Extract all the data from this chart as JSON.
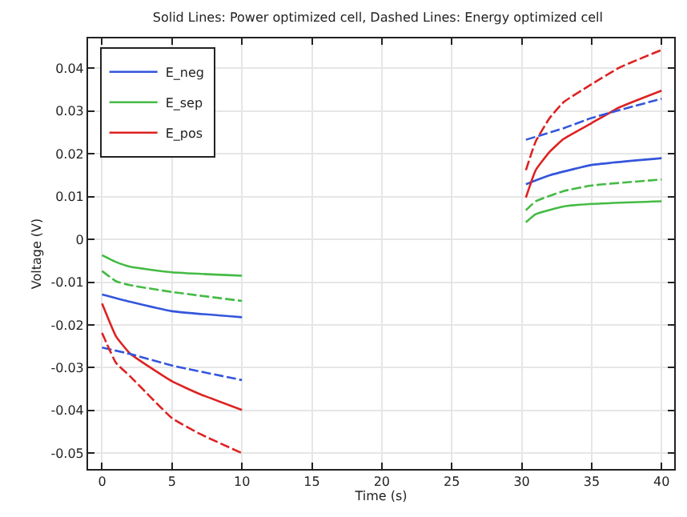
{
  "chart_data": {
    "type": "line",
    "title": "Solid Lines: Power optimized cell, Dashed Lines: Energy optimized cell",
    "xlabel": "Time (s)",
    "ylabel": "Voltage (V)",
    "xlim": [
      -1,
      40.9
    ],
    "xticks": [
      0,
      5,
      10,
      15,
      20,
      25,
      30,
      35,
      40
    ],
    "ylim": [
      -0.0537,
      0.047
    ],
    "yticks": [
      -0.05,
      -0.04,
      -0.03,
      -0.02,
      -0.01,
      0,
      0.01,
      0.02,
      0.03,
      0.04
    ],
    "grid": true,
    "legend": "top left",
    "marker": "none",
    "series": [
      {
        "name": "E_neg",
        "color": "#3355dd",
        "line_style": "solid",
        "x": [
          0,
          2,
          5,
          10,
          20,
          30.3,
          32,
          35,
          40
        ],
        "values": [
          -0.0129,
          -0.0146,
          -0.0168,
          -0.0182,
          null,
          0.0129,
          0.015,
          0.0174,
          0.019
        ]
      },
      {
        "name": "E_sep",
        "color": "#44bb44",
        "line_style": "solid",
        "x": [
          0,
          1,
          2,
          5,
          10,
          20,
          30.3,
          31,
          33,
          35,
          40
        ],
        "values": [
          -0.0037,
          -0.0053,
          -0.0064,
          -0.0077,
          -0.0085,
          null,
          0.004,
          0.0059,
          0.0077,
          0.0083,
          0.0089
        ]
      },
      {
        "name": "E_pos",
        "color": "#dd2222",
        "line_style": "solid",
        "x": [
          0,
          1,
          2,
          5,
          7,
          10,
          20,
          30.3,
          31,
          32,
          33,
          35,
          37,
          40
        ],
        "values": [
          -0.015,
          -0.0227,
          -0.0267,
          -0.0332,
          -0.0362,
          -0.0399,
          null,
          0.0098,
          0.0162,
          0.0205,
          0.0235,
          0.0272,
          0.0309,
          0.0348
        ]
      },
      {
        "color": "#3355dd",
        "line_style": "dashed",
        "x": [
          0,
          2,
          5,
          10,
          20,
          30.3,
          33,
          35,
          40
        ],
        "values": [
          -0.0253,
          -0.0268,
          -0.0295,
          -0.0329,
          null,
          0.0233,
          0.026,
          0.0284,
          0.0329
        ]
      },
      {
        "color": "#44bb44",
        "line_style": "dashed",
        "x": [
          0,
          1,
          2,
          5,
          10,
          20,
          30.3,
          31,
          33,
          35,
          40
        ],
        "values": [
          -0.0074,
          -0.0098,
          -0.0107,
          -0.0123,
          -0.0144,
          null,
          0.0068,
          0.0089,
          0.0113,
          0.0126,
          0.014
        ]
      },
      {
        "color": "#dd2222",
        "line_style": "dashed",
        "x": [
          0,
          1,
          2,
          5,
          7,
          10,
          20,
          30.3,
          31,
          32,
          33,
          35,
          37,
          40
        ],
        "values": [
          -0.0219,
          -0.0289,
          -0.032,
          -0.0418,
          -0.0455,
          -0.05,
          null,
          0.0162,
          0.0229,
          0.0284,
          0.0321,
          0.0363,
          0.0402,
          0.0443
        ]
      }
    ]
  }
}
